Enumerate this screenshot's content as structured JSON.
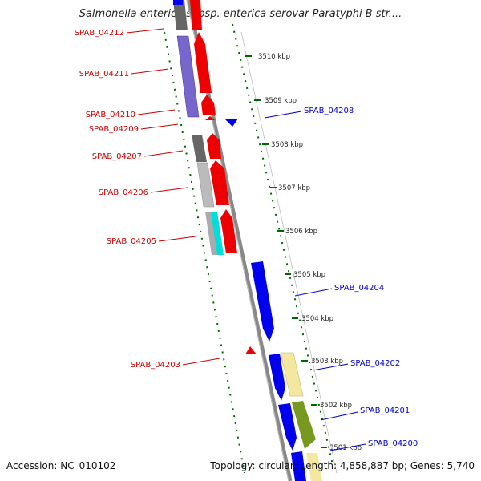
{
  "title": "Salmonella enterica subsp. enterica serovar Paratyphi B str....",
  "footer": {
    "accession": "Accession: NC_010102",
    "summary": "Topology: circular; Length: 4,858,887 bp; Genes: 5,740"
  },
  "colors": {
    "forward": "#ee0000",
    "reverse": "#0000ee",
    "forward_label": "#cc0000",
    "reverse_label": "#0000cc",
    "tick": "#006600",
    "backbone": "#888888"
  },
  "ticks": [
    {
      "label": "3510 kbp"
    },
    {
      "label": "3509 kbp"
    },
    {
      "label": "3508 kbp"
    },
    {
      "label": "3507 kbp"
    },
    {
      "label": "3506 kbp"
    },
    {
      "label": "3505 kbp"
    },
    {
      "label": "3504 kbp"
    },
    {
      "label": "3503 kbp"
    },
    {
      "label": "3502 kbp"
    },
    {
      "label": "3501 kbp"
    }
  ],
  "forward_labels": [
    "SPAB_04212",
    "SPAB_04211",
    "SPAB_04210",
    "SPAB_04209",
    "SPAB_04207",
    "SPAB_04206",
    "SPAB_04205",
    "SPAB_04203"
  ],
  "reverse_labels": [
    "SPAB_04208",
    "SPAB_04204",
    "SPAB_04202",
    "SPAB_04201",
    "SPAB_04200"
  ]
}
